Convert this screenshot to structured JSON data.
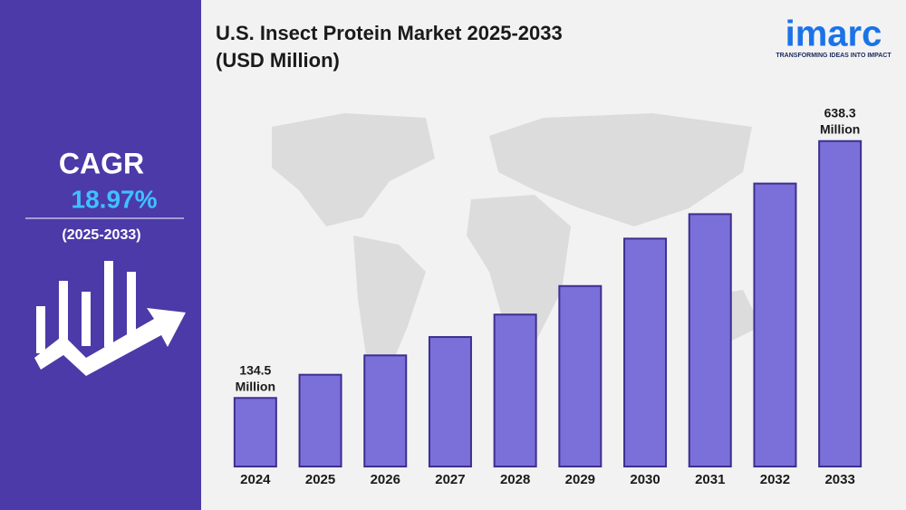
{
  "chart_data": {
    "type": "bar",
    "title": "U.S. Insect Protein Market 2025-2033",
    "subtitle": "(USD Million)",
    "categories": [
      "2024",
      "2025",
      "2026",
      "2027",
      "2028",
      "2029",
      "2030",
      "2031",
      "2032",
      "2033"
    ],
    "values": [
      134.5,
      180,
      218,
      254,
      298,
      354,
      447,
      495,
      555,
      638.3
    ],
    "value_labels": [
      "134.5 Million",
      null,
      null,
      null,
      null,
      null,
      null,
      null,
      null,
      "638.3 Million"
    ],
    "color": "#7b6fd9",
    "ylim": [
      0,
      700
    ]
  },
  "sidebar": {
    "label": "CAGR",
    "value": "18.97%",
    "period": "(2025-2033)"
  },
  "logo": {
    "name": "imarc",
    "tagline": "TRANSFORMING IDEAS INTO IMPACT"
  }
}
